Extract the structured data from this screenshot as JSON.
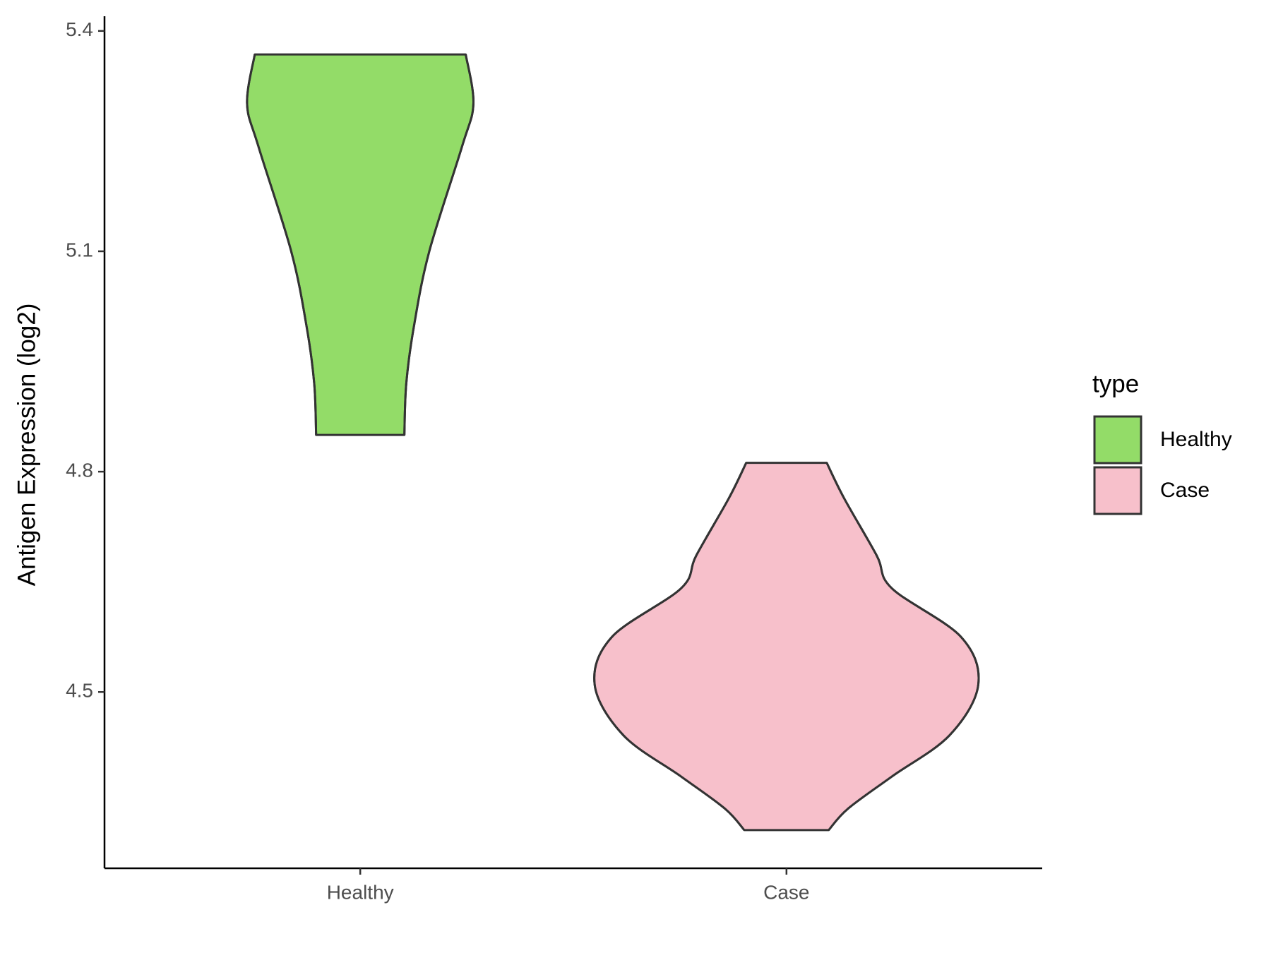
{
  "chart_data": {
    "type": "violin",
    "y_label": "Antigen Expression (log2)",
    "categories": [
      "Healthy",
      "Case"
    ],
    "ylim": [
      4.26,
      5.42
    ],
    "yticks": [
      4.5,
      4.8,
      5.1,
      5.4
    ],
    "legend_title": "type",
    "legend": "right",
    "series": [
      {
        "name": "Healthy",
        "color": "#93dc68",
        "y": [
          4.85,
          4.92,
          4.998,
          5.1,
          5.242,
          5.301,
          5.368
        ],
        "density": [
          0.23,
          0.24,
          0.28,
          0.36,
          0.53,
          0.59,
          0.55
        ]
      },
      {
        "name": "Case",
        "color": "#f7c0cb",
        "y": [
          4.312,
          4.341,
          4.385,
          4.441,
          4.51,
          4.575,
          4.641,
          4.686,
          4.764,
          4.812
        ],
        "density": [
          0.22,
          0.32,
          0.55,
          0.85,
          1.0,
          0.91,
          0.55,
          0.47,
          0.3,
          0.21
        ]
      }
    ]
  }
}
